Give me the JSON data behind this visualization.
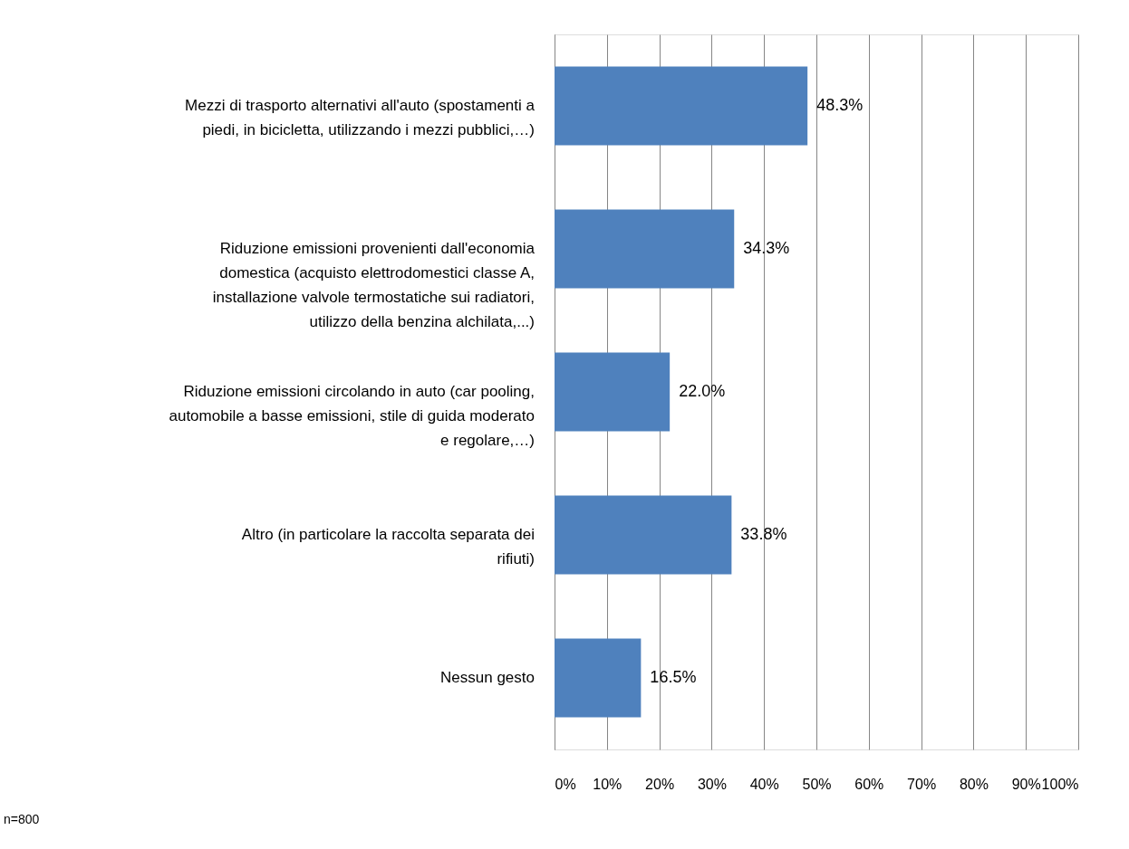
{
  "chart_data": {
    "type": "bar",
    "orientation": "horizontal",
    "categories": [
      "Mezzi di trasporto alternativi all'auto (spostamenti a piedi, in bicicletta, utilizzando i mezzi pubblici,…)",
      "Riduzione emissioni provenienti dall'economia domestica (acquisto elettrodomestici classe A, installazione valvole termostatiche sui radiatori, utilizzo della benzina alchilata,...)",
      "Riduzione emissioni circolando in auto (car pooling, automobile a basse emissioni, stile di guida moderato e regolare,…)",
      "Altro (in particolare la raccolta separata dei rifiuti)",
      "Nessun gesto"
    ],
    "values": [
      48.3,
      34.3,
      22.0,
      33.8,
      16.5
    ],
    "value_labels": [
      "48.3%",
      "34.3%",
      "22.0%",
      "33.8%",
      "16.5%"
    ],
    "color": "#4f81bd",
    "xlim": [
      0,
      100
    ],
    "xticks": [
      {
        "value": 0,
        "label": "0%"
      },
      {
        "value": 10,
        "label": "10%"
      },
      {
        "value": 20,
        "label": "20%"
      },
      {
        "value": 30,
        "label": "30%"
      },
      {
        "value": 40,
        "label": "40%"
      },
      {
        "value": 50,
        "label": "50%"
      },
      {
        "value": 60,
        "label": "60%"
      },
      {
        "value": 70,
        "label": "70%"
      },
      {
        "value": 80,
        "label": "80%"
      },
      {
        "value": 90,
        "label": "90%"
      },
      {
        "value": 100,
        "label": "100%"
      }
    ],
    "grid": "x",
    "annotations": [
      "n=800"
    ]
  }
}
